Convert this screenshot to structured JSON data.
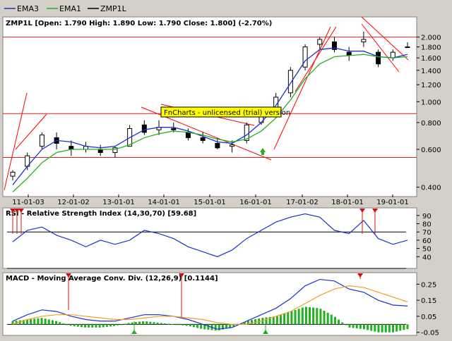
{
  "legend": [
    {
      "name": "EMA3",
      "color": "#1f2fd0"
    },
    {
      "name": "EMA1",
      "color": "#22b022"
    },
    {
      "name": "ZMP1L",
      "color": "#000000"
    }
  ],
  "price_title": "ZMP1L [Open: 1.790  High: 1.890  Low: 1.790  Close: 1.800] (-2.70%)",
  "watermark": "FnCharts - unlicensed (trial) version",
  "rsi_title": "RSI - Relative Strength Index (14,30,70) [59.68]",
  "macd_title": "MACD - Moving Average Conv. Div. (12,26,9) [0.1144]",
  "x_ticks": [
    "11-01-03",
    "12-01-02",
    "13-01-01",
    "14-01-01",
    "15-01-01",
    "16-01-01",
    "17-01-02",
    "18-01-01",
    "19-01-01"
  ],
  "colors": {
    "background": "#ffffff",
    "panel_bg": "#d4d0c8",
    "candle": "#000000",
    "ema3": "#1f2fd0",
    "ema1": "#22b022",
    "hline": "#e02020",
    "trendline": "#ff0000",
    "macd_line": "#1f2fd0",
    "signal_line": "#f0a020",
    "histogram": "#22b022",
    "buy_arrow": "#22b022",
    "sell_marker": "#d01010",
    "watermark_bg": "#ffff00"
  },
  "chart_data": [
    {
      "type": "candlestick",
      "title": "ZMP1L [Open: 1.790  High: 1.890  Low: 1.790  Close: 1.800] (-2.70%)",
      "y_scale": "log",
      "ylim": [
        0.37,
        2.2
      ],
      "y_ticks": [
        "2.000",
        "1.800",
        "1.600",
        "1.400",
        "1.200",
        "1.000",
        "0.800",
        "0.600",
        "0.400"
      ],
      "horizontal_lines": [
        2.0,
        0.88,
        0.55
      ],
      "candles_ohlc_sample": [
        [
          0.45,
          0.48,
          0.43,
          0.47
        ],
        [
          0.5,
          0.58,
          0.48,
          0.56
        ],
        [
          0.62,
          0.72,
          0.6,
          0.7
        ],
        [
          0.68,
          0.72,
          0.6,
          0.64
        ],
        [
          0.62,
          0.66,
          0.56,
          0.6
        ],
        [
          0.6,
          0.65,
          0.58,
          0.62
        ],
        [
          0.6,
          0.63,
          0.56,
          0.58
        ],
        [
          0.58,
          0.62,
          0.55,
          0.61
        ],
        [
          0.62,
          0.78,
          0.62,
          0.75
        ],
        [
          0.78,
          0.82,
          0.7,
          0.72
        ],
        [
          0.74,
          0.82,
          0.7,
          0.76
        ],
        [
          0.75,
          0.8,
          0.72,
          0.74
        ],
        [
          0.72,
          0.75,
          0.66,
          0.68
        ],
        [
          0.68,
          0.72,
          0.64,
          0.66
        ],
        [
          0.64,
          0.68,
          0.6,
          0.61
        ],
        [
          0.62,
          0.66,
          0.58,
          0.63
        ],
        [
          0.66,
          0.8,
          0.64,
          0.78
        ],
        [
          0.8,
          0.9,
          0.78,
          0.86
        ],
        [
          0.9,
          1.1,
          0.88,
          1.05
        ],
        [
          1.1,
          1.45,
          1.05,
          1.4
        ],
        [
          1.45,
          1.85,
          1.4,
          1.8
        ],
        [
          1.85,
          2.0,
          1.75,
          1.95
        ],
        [
          1.9,
          2.0,
          1.7,
          1.75
        ],
        [
          1.7,
          1.8,
          1.55,
          1.65
        ],
        [
          1.9,
          2.12,
          1.8,
          1.95
        ],
        [
          1.7,
          1.75,
          1.45,
          1.5
        ],
        [
          1.6,
          1.75,
          1.55,
          1.7
        ],
        [
          1.79,
          1.89,
          1.79,
          1.8
        ]
      ],
      "series": [
        {
          "name": "EMA3",
          "values": [
            0.41,
            0.5,
            0.6,
            0.66,
            0.65,
            0.62,
            0.61,
            0.62,
            0.68,
            0.74,
            0.76,
            0.76,
            0.73,
            0.69,
            0.65,
            0.64,
            0.7,
            0.8,
            0.96,
            1.22,
            1.55,
            1.75,
            1.78,
            1.72,
            1.72,
            1.62,
            1.6,
            1.66
          ]
        },
        {
          "name": "EMA1",
          "values": [
            0.38,
            0.44,
            0.52,
            0.58,
            0.6,
            0.6,
            0.6,
            0.6,
            0.63,
            0.68,
            0.71,
            0.73,
            0.72,
            0.7,
            0.67,
            0.65,
            0.67,
            0.73,
            0.84,
            1.02,
            1.28,
            1.5,
            1.62,
            1.64,
            1.66,
            1.62,
            1.6,
            1.62
          ]
        }
      ]
    },
    {
      "type": "line",
      "title": "RSI - Relative Strength Index (14,30,70) [59.68]",
      "ylim": [
        30,
        95
      ],
      "y_ticks": [
        "90",
        "80",
        "70",
        "60",
        "50",
        "40"
      ],
      "horizontal_lines": [
        70
      ],
      "series": [
        {
          "name": "RSI",
          "values": [
            58,
            72,
            76,
            66,
            60,
            52,
            60,
            55,
            60,
            72,
            68,
            62,
            52,
            46,
            40,
            48,
            62,
            72,
            82,
            88,
            92,
            88,
            72,
            68,
            84,
            62,
            55,
            60
          ]
        }
      ]
    },
    {
      "type": "line",
      "title": "MACD - Moving Average Conv. Div. (12,26,9) [0.1144]",
      "ylim": [
        -0.06,
        0.3
      ],
      "y_ticks": [
        "0.25",
        "0.15",
        "0.05",
        "-0.05"
      ],
      "series": [
        {
          "name": "MACD",
          "values": [
            0.02,
            0.06,
            0.09,
            0.08,
            0.05,
            0.03,
            0.02,
            0.02,
            0.04,
            0.06,
            0.06,
            0.05,
            0.03,
            0.0,
            -0.03,
            -0.02,
            0.02,
            0.06,
            0.1,
            0.16,
            0.24,
            0.28,
            0.27,
            0.22,
            0.2,
            0.15,
            0.12,
            0.114
          ]
        },
        {
          "name": "Signal",
          "values": [
            0.0,
            0.03,
            0.05,
            0.06,
            0.06,
            0.05,
            0.04,
            0.03,
            0.03,
            0.04,
            0.05,
            0.05,
            0.04,
            0.03,
            0.01,
            0.0,
            0.0,
            0.02,
            0.05,
            0.08,
            0.13,
            0.18,
            0.22,
            0.24,
            0.23,
            0.2,
            0.17,
            0.14
          ]
        },
        {
          "name": "Histogram",
          "values": [
            0.02,
            0.03,
            0.04,
            0.02,
            -0.01,
            -0.02,
            -0.02,
            -0.01,
            0.01,
            0.02,
            0.01,
            0.0,
            -0.01,
            -0.03,
            -0.04,
            -0.02,
            0.02,
            0.04,
            0.05,
            0.08,
            0.11,
            0.1,
            0.05,
            -0.02,
            -0.03,
            -0.05,
            -0.05,
            -0.03
          ]
        }
      ]
    }
  ]
}
